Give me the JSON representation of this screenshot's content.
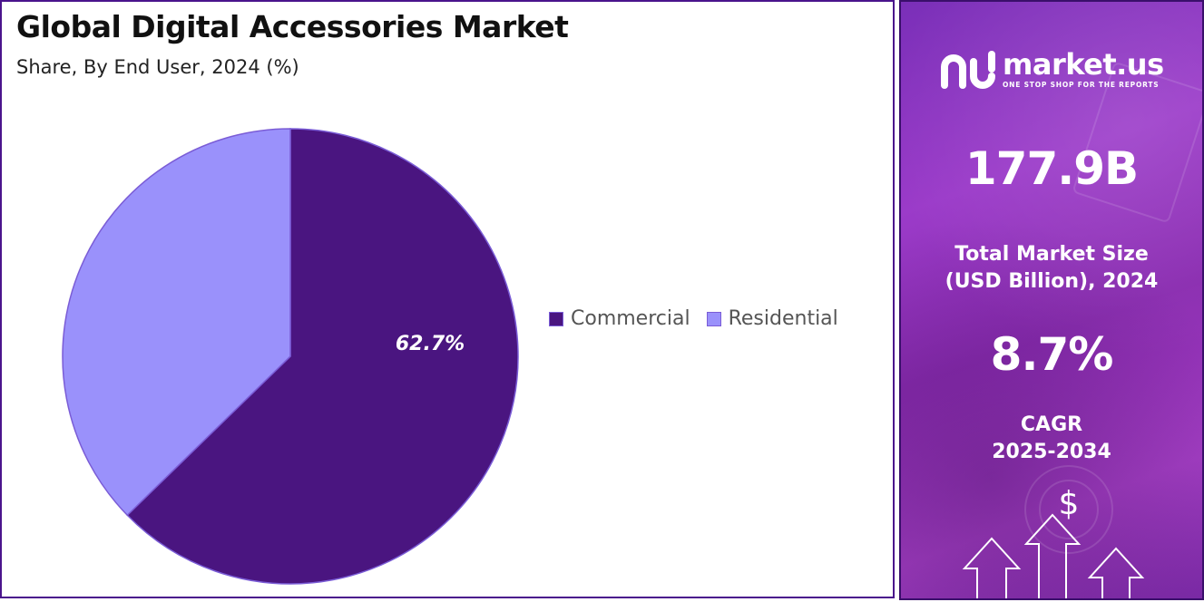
{
  "chart_data": {
    "type": "pie",
    "title": "Global Digital Accessories Market",
    "subtitle": "Share, By End User, 2024 (%)",
    "slices": [
      {
        "label": "Commercial",
        "value": 62.7,
        "color": "#4a1580",
        "show_label": true,
        "display": "62.7%"
      },
      {
        "label": "Residential",
        "value": 37.3,
        "color": "#9a91fb",
        "show_label": false,
        "display": ""
      }
    ],
    "legend": {
      "position": "right"
    }
  },
  "side_panel": {
    "brand_name": "market.us",
    "brand_tagline": "ONE STOP SHOP FOR THE REPORTS",
    "market_size_value": "177.9B",
    "market_size_label_line1": "Total Market Size",
    "market_size_label_line2": "(USD Billion), 2024",
    "cagr_value": "8.7%",
    "cagr_label_line1": "CAGR",
    "cagr_label_line2": "2025-2034",
    "currency_symbol": "$",
    "logo_icon": "market-us-logo-icon",
    "arrow_icon": "up-arrow-icon"
  }
}
